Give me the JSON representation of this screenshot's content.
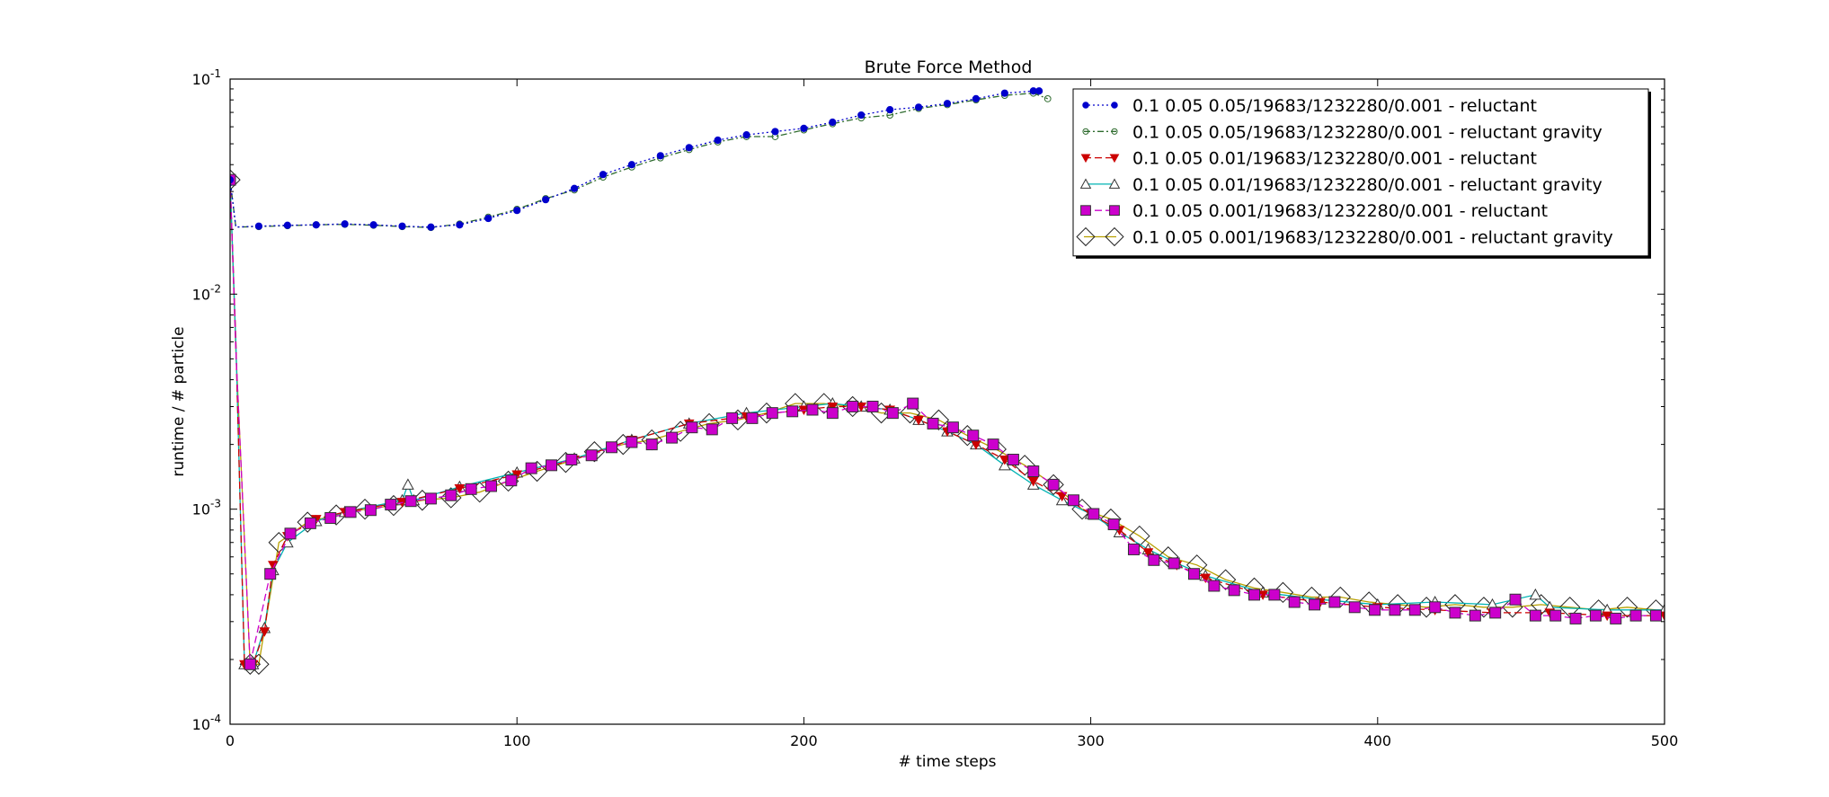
{
  "chart_data": {
    "type": "line",
    "title": "Brute Force Method",
    "xlabel": "# time steps",
    "ylabel": "runtime / # particle",
    "xlim": [
      0,
      500
    ],
    "ylim": [
      0.0001,
      0.1
    ],
    "yscale": "log",
    "grid": false,
    "legend_placement": "top-right",
    "xticks": [
      0,
      100,
      200,
      300,
      400,
      500
    ],
    "xtick_labels": [
      "0",
      "100",
      "200",
      "300",
      "400",
      "500"
    ],
    "yticks": [
      0.0001,
      0.001,
      0.01,
      0.1
    ],
    "ytick_labels": [
      {
        "base": "10",
        "exp": "-4"
      },
      {
        "base": "10",
        "exp": "-3"
      },
      {
        "base": "10",
        "exp": "-2"
      },
      {
        "base": "10",
        "exp": "-1"
      }
    ],
    "series": [
      {
        "name": "0.1 0.05 0.05/19683/1232280/0.001 - reluctant",
        "color": "#0000cc",
        "marker": "circle-filled",
        "linestyle": "dotted",
        "x": [
          0,
          2,
          10,
          20,
          30,
          40,
          50,
          60,
          70,
          80,
          90,
          100,
          110,
          120,
          130,
          140,
          150,
          160,
          170,
          180,
          190,
          200,
          210,
          220,
          230,
          240,
          250,
          260,
          270,
          280,
          282
        ],
        "y": [
          0.034,
          0.0205,
          0.0207,
          0.0209,
          0.021,
          0.0212,
          0.021,
          0.0207,
          0.0205,
          0.021,
          0.0225,
          0.0245,
          0.0275,
          0.031,
          0.036,
          0.04,
          0.044,
          0.048,
          0.052,
          0.055,
          0.057,
          0.059,
          0.063,
          0.068,
          0.072,
          0.074,
          0.077,
          0.081,
          0.086,
          0.088,
          0.088
        ]
      },
      {
        "name": "0.1 0.05 0.05/19683/1232280/0.001 - reluctant gravity",
        "color": "#2e6b2e",
        "marker": "circle-open",
        "linestyle": "dashdot",
        "x": [
          0,
          2,
          10,
          20,
          30,
          40,
          50,
          60,
          70,
          80,
          90,
          100,
          110,
          120,
          130,
          140,
          150,
          160,
          170,
          180,
          190,
          200,
          210,
          220,
          230,
          240,
          250,
          260,
          270,
          280,
          285
        ],
        "y": [
          0.034,
          0.0205,
          0.0206,
          0.0208,
          0.021,
          0.0211,
          0.0209,
          0.0206,
          0.0204,
          0.0212,
          0.0228,
          0.0248,
          0.0278,
          0.0305,
          0.035,
          0.039,
          0.043,
          0.047,
          0.051,
          0.054,
          0.054,
          0.058,
          0.062,
          0.066,
          0.068,
          0.073,
          0.076,
          0.08,
          0.084,
          0.086,
          0.081
        ]
      },
      {
        "name": "0.1 0.05 0.01/19683/1232280/0.001 - reluctant",
        "color": "#cc0000",
        "marker": "triangle-down-filled",
        "linestyle": "dashed",
        "x": [
          0,
          2,
          5,
          8,
          12,
          15,
          20,
          30,
          40,
          60,
          80,
          100,
          120,
          140,
          160,
          180,
          200,
          210,
          220,
          230,
          240,
          250,
          260,
          270,
          280,
          290,
          300,
          310,
          320,
          330,
          340,
          360,
          380,
          400,
          420,
          440,
          460,
          480,
          500
        ],
        "y": [
          0.034,
          0.006,
          0.00019,
          0.00019,
          0.00027,
          0.00055,
          0.00075,
          0.0009,
          0.00097,
          0.00108,
          0.00125,
          0.00145,
          0.0017,
          0.0021,
          0.0025,
          0.0027,
          0.0029,
          0.003,
          0.003,
          0.0029,
          0.0026,
          0.0023,
          0.002,
          0.0017,
          0.00135,
          0.00115,
          0.00095,
          0.0008,
          0.00063,
          0.00055,
          0.00048,
          0.0004,
          0.00037,
          0.00035,
          0.00034,
          0.00033,
          0.00033,
          0.00032,
          0.00032
        ]
      },
      {
        "name": "0.1 0.05 0.01/19683/1232280/0.001 - reluctant gravity",
        "color": "#00b3b3",
        "marker": "triangle-up-open",
        "linestyle": "solid",
        "x": [
          0,
          2,
          5,
          8,
          12,
          15,
          20,
          30,
          40,
          60,
          62,
          64,
          80,
          100,
          120,
          140,
          160,
          180,
          200,
          210,
          220,
          230,
          240,
          250,
          260,
          270,
          280,
          290,
          300,
          310,
          320,
          330,
          340,
          360,
          380,
          400,
          420,
          440,
          455,
          460,
          480,
          500
        ],
        "y": [
          0.034,
          0.006,
          0.00019,
          0.00019,
          0.00028,
          0.00052,
          0.0007,
          0.00088,
          0.00097,
          0.0011,
          0.0013,
          0.0011,
          0.00127,
          0.00148,
          0.00172,
          0.0021,
          0.0025,
          0.0028,
          0.003,
          0.0031,
          0.003,
          0.0029,
          0.0026,
          0.0023,
          0.002,
          0.0016,
          0.0013,
          0.0011,
          0.00095,
          0.00078,
          0.00065,
          0.00056,
          0.00049,
          0.00041,
          0.00038,
          0.00036,
          0.00037,
          0.00036,
          0.0004,
          0.00035,
          0.00034,
          0.00034
        ]
      },
      {
        "name": "0.1 0.05 0.001/19683/1232280/0.001 - reluctant",
        "color": "#cc00cc",
        "marker": "square-filled",
        "linestyle": "dashed",
        "x": [
          0,
          2,
          7,
          14,
          21,
          28,
          35,
          42,
          49,
          56,
          63,
          70,
          77,
          84,
          91,
          98,
          105,
          112,
          119,
          126,
          133,
          140,
          147,
          154,
          161,
          168,
          175,
          182,
          189,
          196,
          203,
          210,
          217,
          224,
          231,
          238,
          245,
          252,
          259,
          266,
          273,
          280,
          287,
          294,
          301,
          308,
          315,
          322,
          329,
          336,
          343,
          350,
          357,
          364,
          371,
          378,
          385,
          392,
          399,
          406,
          413,
          420,
          427,
          434,
          441,
          448,
          455,
          462,
          469,
          476,
          483,
          490,
          497
        ],
        "y": [
          0.034,
          0.0055,
          0.00019,
          0.0005,
          0.00077,
          0.00086,
          0.00091,
          0.00097,
          0.00099,
          0.00105,
          0.00109,
          0.00112,
          0.00116,
          0.00124,
          0.00128,
          0.00136,
          0.00155,
          0.0016,
          0.0017,
          0.00178,
          0.00194,
          0.00205,
          0.002,
          0.00215,
          0.0024,
          0.00235,
          0.00265,
          0.00265,
          0.0028,
          0.00285,
          0.0029,
          0.0028,
          0.003,
          0.003,
          0.0028,
          0.0031,
          0.0025,
          0.0024,
          0.0022,
          0.002,
          0.0017,
          0.0015,
          0.0013,
          0.0011,
          0.00095,
          0.00085,
          0.00065,
          0.00058,
          0.00056,
          0.0005,
          0.00044,
          0.00042,
          0.0004,
          0.0004,
          0.00037,
          0.00036,
          0.00037,
          0.00035,
          0.00034,
          0.00034,
          0.00034,
          0.00035,
          0.00033,
          0.00032,
          0.00033,
          0.00038,
          0.00032,
          0.00032,
          0.00031,
          0.00032,
          0.00031,
          0.00032,
          0.00032
        ]
      },
      {
        "name": "0.1 0.05 0.001/19683/1232280/0.001 - reluctant gravity",
        "color": "#b8a000",
        "marker": "diamond-open",
        "linestyle": "solid",
        "x": [
          0,
          2,
          7,
          10,
          17,
          27,
          37,
          47,
          57,
          67,
          77,
          87,
          97,
          107,
          117,
          127,
          137,
          147,
          157,
          167,
          177,
          187,
          197,
          207,
          217,
          227,
          237,
          247,
          257,
          267,
          277,
          287,
          297,
          307,
          317,
          327,
          337,
          347,
          357,
          367,
          377,
          387,
          397,
          407,
          417,
          427,
          437,
          447,
          457,
          467,
          477,
          487,
          497
        ],
        "y": [
          0.034,
          0.0055,
          0.00019,
          0.00019,
          0.0007,
          0.00087,
          0.00094,
          0.001,
          0.00104,
          0.0011,
          0.00113,
          0.0012,
          0.00135,
          0.0015,
          0.00165,
          0.00185,
          0.002,
          0.0021,
          0.0023,
          0.0025,
          0.0026,
          0.0028,
          0.0031,
          0.0031,
          0.003,
          0.0028,
          0.0028,
          0.0026,
          0.0022,
          0.0019,
          0.0016,
          0.0013,
          0.001,
          0.0009,
          0.00075,
          0.0006,
          0.00055,
          0.00047,
          0.00043,
          0.00041,
          0.00039,
          0.00039,
          0.00037,
          0.00036,
          0.00035,
          0.00036,
          0.00035,
          0.00035,
          0.00036,
          0.00035,
          0.00034,
          0.00035,
          0.00034
        ]
      }
    ]
  }
}
